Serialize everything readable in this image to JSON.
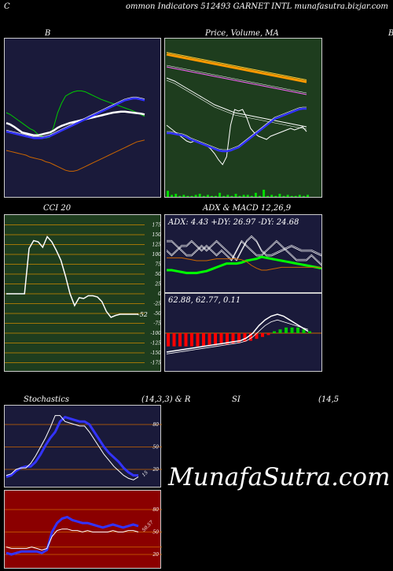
{
  "header": {
    "left": "C",
    "title": "ommon  Indicators 512493 GARNET INTL  munafasutra.bizjar.com"
  },
  "watermark": "MunafaSutra.com",
  "panels": {
    "bollinger": {
      "title": "B"
    },
    "price": {
      "title": "Price,  Volume,  MA",
      "right_edge": "B"
    },
    "cci": {
      "title": "CCI 20",
      "last_label": "-52"
    },
    "adx": {
      "title": "ADX  & MACD 12,26,9",
      "readout": "ADX: 4.43 +DY: 26.97 -DY: 24.68"
    },
    "macd": {
      "readout": "62.88,  62.77,  0.11"
    },
    "stoch": {
      "title_left": "Stochastics",
      "title_mid": "(14,3,3) & R",
      "title_si": "SI",
      "title_right": "(14,5",
      "last_label": "15",
      "ticks": [
        "80",
        "50",
        "20"
      ]
    },
    "rsi": {
      "last_label": "50.57",
      "ticks": [
        "80",
        "50",
        "30",
        "20"
      ]
    }
  },
  "colors": {
    "navy": "#1a1a3a",
    "green": "#1e3d1e",
    "darkred": "#8b0000",
    "orange": "#cc6600"
  },
  "chart_data": [
    {
      "type": "line",
      "name": "bollinger",
      "x": [
        0,
        1,
        2,
        3,
        4,
        5,
        6,
        7,
        8,
        9,
        10,
        11,
        12,
        13,
        14,
        15,
        16,
        17,
        18,
        19,
        20,
        21,
        22,
        23,
        24,
        25,
        26,
        27,
        28,
        29,
        30,
        31,
        32,
        33,
        34,
        35
      ],
      "series": [
        {
          "color": "#00cc00",
          "values": [
            60,
            56,
            50,
            44,
            38,
            32,
            26,
            22,
            14,
            10,
            6,
            8,
            30,
            60,
            80,
            95,
            100,
            104,
            106,
            106,
            104,
            100,
            96,
            92,
            88,
            85,
            82,
            79,
            76,
            73,
            70,
            67,
            64,
            60,
            56,
            52
          ]
        },
        {
          "color": "#ffffff",
          "values": [
            38,
            35,
            30,
            24,
            18,
            16,
            14,
            12,
            12,
            14,
            16,
            18,
            22,
            28,
            32,
            35,
            38,
            40,
            42,
            44,
            46,
            48,
            50,
            52,
            54,
            56,
            58,
            60,
            61,
            62,
            62,
            61,
            60,
            59,
            58,
            56
          ]
        },
        {
          "color": "#3333ff",
          "values": [
            20,
            18,
            16,
            14,
            12,
            10,
            8,
            6,
            6,
            6,
            8,
            10,
            14,
            18,
            22,
            26,
            30,
            34,
            38,
            42,
            46,
            50,
            54,
            58,
            62,
            66,
            70,
            74,
            78,
            82,
            86,
            88,
            90,
            90,
            88,
            86
          ]
        },
        {
          "color": "#cc6600",
          "values": [
            -20,
            -22,
            -24,
            -26,
            -28,
            -30,
            -34,
            -36,
            -38,
            -40,
            -44,
            -46,
            -50,
            -54,
            -58,
            -62,
            -64,
            -64,
            -62,
            -58,
            -54,
            -50,
            -46,
            -42,
            -38,
            -34,
            -30,
            -26,
            -22,
            -18,
            -14,
            -10,
            -6,
            -2,
            0,
            2
          ]
        }
      ]
    },
    {
      "type": "line",
      "name": "price_volume_ma",
      "x": [
        0,
        1,
        2,
        3,
        4,
        5,
        6,
        7,
        8,
        9,
        10,
        11,
        12,
        13,
        14,
        15,
        16,
        17,
        18,
        19,
        20,
        21,
        22,
        23,
        24,
        25,
        26,
        27,
        28,
        29,
        30,
        31,
        32,
        33,
        34,
        35
      ],
      "series": [
        {
          "color": "#ff9900",
          "values": [
            100,
            99,
            98,
            97,
            96,
            95,
            94,
            93,
            92,
            91,
            90,
            89,
            88,
            87,
            86,
            85,
            84,
            83,
            82,
            81,
            80,
            79,
            78,
            77,
            76,
            75,
            74,
            73,
            72,
            71,
            70,
            69,
            68,
            67,
            66,
            65
          ]
        },
        {
          "color": "#ff66ff",
          "values": [
            84,
            83,
            82,
            81,
            80,
            79,
            78,
            77,
            76,
            75,
            74,
            73,
            72,
            71,
            70,
            69,
            68,
            67,
            66,
            65,
            64,
            63,
            62,
            61,
            60,
            59,
            58,
            57,
            56,
            55,
            54,
            53,
            52,
            51,
            50,
            49
          ]
        },
        {
          "color": "#ffffff",
          "values": [
            70,
            68,
            66,
            63,
            60,
            57,
            54,
            51,
            48,
            45,
            42,
            39,
            36,
            34,
            32,
            30,
            28,
            26,
            25,
            24,
            23,
            22,
            21,
            20,
            19,
            18,
            17,
            16,
            15,
            14,
            13,
            12,
            11,
            10,
            9,
            8
          ]
        },
        {
          "color": "#ffffff",
          "values": [
            10,
            6,
            2,
            -2,
            -6,
            -10,
            -12,
            -10,
            -12,
            -14,
            -16,
            -20,
            -26,
            -34,
            -40,
            -30,
            10,
            30,
            28,
            30,
            20,
            6,
            0,
            -4,
            -6,
            -8,
            -4,
            -2,
            0,
            2,
            4,
            6,
            4,
            6,
            8,
            2
          ]
        },
        {
          "color": "#3333ff",
          "values": [
            0,
            0,
            -1,
            -2,
            -3,
            -5,
            -8,
            -10,
            -12,
            -14,
            -16,
            -18,
            -20,
            -22,
            -23,
            -23,
            -22,
            -20,
            -18,
            -14,
            -10,
            -6,
            -2,
            2,
            6,
            10,
            14,
            18,
            20,
            22,
            24,
            26,
            28,
            30,
            31,
            31
          ]
        }
      ],
      "volume": [
        6,
        2,
        3,
        1,
        2,
        1,
        1,
        2,
        3,
        1,
        2,
        1,
        1,
        4,
        1,
        2,
        1,
        3,
        1,
        2,
        2,
        1,
        4,
        1,
        7,
        1,
        2,
        1,
        3,
        1,
        2,
        1,
        1,
        2,
        1,
        2
      ]
    },
    {
      "type": "line",
      "name": "cci",
      "y_ticks": [
        175,
        150,
        125,
        100,
        75,
        50,
        25,
        0,
        -25,
        -50,
        -75,
        -100,
        -125,
        -150,
        -175
      ],
      "ylim": [
        -175,
        175
      ],
      "x": [
        0,
        1,
        2,
        3,
        4,
        5,
        6,
        7,
        8,
        9,
        10,
        11,
        12,
        13,
        14,
        15,
        16,
        17,
        18,
        19,
        20,
        21,
        22,
        23,
        24,
        25,
        26,
        27,
        28,
        29
      ],
      "values": [
        0,
        0,
        0,
        0,
        0,
        115,
        135,
        132,
        118,
        145,
        132,
        110,
        85,
        45,
        0,
        -30,
        -10,
        -12,
        -5,
        -5,
        -8,
        -20,
        -45,
        -60,
        -55,
        -52,
        -52,
        -52,
        -52,
        -52
      ]
    },
    {
      "type": "line",
      "name": "adx",
      "series": [
        {
          "color": "#ffffff",
          "values": [
            60,
            60,
            50,
            40,
            30,
            30,
            40,
            50,
            40,
            50,
            60,
            50,
            40,
            30,
            20,
            40,
            60,
            70,
            60,
            40,
            30,
            30,
            35,
            40,
            45,
            50,
            45,
            40,
            40,
            40,
            35,
            30
          ]
        },
        {
          "color": "#ffffff",
          "values": [
            40,
            30,
            40,
            50,
            50,
            60,
            50,
            40,
            50,
            40,
            30,
            40,
            30,
            20,
            40,
            60,
            50,
            40,
            30,
            30,
            40,
            50,
            60,
            50,
            40,
            30,
            20,
            20,
            20,
            30,
            20,
            10
          ]
        },
        {
          "color": "#00ff00",
          "values": [
            0,
            0,
            -2,
            -4,
            -6,
            -6,
            -6,
            -4,
            -2,
            2,
            6,
            10,
            14,
            14,
            14,
            16,
            20,
            22,
            24,
            28,
            26,
            24,
            22,
            20,
            18,
            16,
            14,
            12,
            10,
            8,
            6,
            4
          ]
        },
        {
          "color": "#cc6600",
          "values": [
            26,
            26,
            26,
            26,
            24,
            22,
            20,
            20,
            20,
            22,
            24,
            24,
            24,
            24,
            24,
            22,
            18,
            10,
            4,
            0,
            0,
            2,
            4,
            6,
            6,
            6,
            6,
            6,
            6,
            6,
            6,
            6
          ]
        }
      ]
    },
    {
      "type": "line",
      "name": "macd",
      "series": [
        {
          "color": "#ffffff",
          "values": [
            -20,
            -19,
            -18,
            -17,
            -16,
            -15,
            -14,
            -13,
            -12,
            -11,
            -10,
            -9,
            -8,
            -5,
            0,
            8,
            14,
            18,
            20,
            18,
            14,
            10,
            6,
            2
          ]
        },
        {
          "color": "#ffffff",
          "values": [
            -22,
            -21,
            -20,
            -19,
            -18,
            -17,
            -16,
            -15,
            -14,
            -13,
            -12,
            -11,
            -10,
            -8,
            -4,
            2,
            8,
            12,
            14,
            12,
            10,
            8,
            6,
            4
          ]
        }
      ],
      "histogram": [
        -14,
        -14,
        -14,
        -14,
        -14,
        -14,
        -14,
        -13,
        -13,
        -12,
        -12,
        -11,
        -10,
        -9,
        -8,
        -6,
        -4,
        -2,
        2,
        4,
        6,
        6,
        6,
        4,
        2
      ]
    },
    {
      "type": "line",
      "name": "stochastics",
      "ylim": [
        0,
        100
      ],
      "series": [
        {
          "color": "#3333ff",
          "values": [
            10,
            12,
            18,
            22,
            24,
            24,
            30,
            40,
            52,
            62,
            70,
            84,
            90,
            88,
            86,
            84,
            84,
            80,
            70,
            60,
            50,
            42,
            36,
            30,
            22,
            16,
            12,
            12
          ]
        },
        {
          "color": "#ffffff",
          "values": [
            12,
            14,
            20,
            22,
            22,
            28,
            38,
            50,
            62,
            76,
            92,
            92,
            84,
            82,
            80,
            78,
            78,
            70,
            60,
            50,
            40,
            32,
            24,
            18,
            12,
            8,
            6,
            10
          ]
        }
      ]
    },
    {
      "type": "line",
      "name": "rsi",
      "ylim": [
        0,
        100
      ],
      "series": [
        {
          "color": "#3333ff",
          "values": [
            22,
            20,
            22,
            24,
            24,
            24,
            24,
            22,
            26,
            50,
            62,
            68,
            70,
            66,
            64,
            62,
            62,
            60,
            58,
            56,
            58,
            60,
            58,
            56,
            58,
            60,
            58
          ]
        },
        {
          "color": "#ffffff",
          "values": [
            30,
            28,
            28,
            28,
            28,
            30,
            28,
            26,
            28,
            44,
            52,
            54,
            54,
            52,
            52,
            50,
            52,
            50,
            50,
            50,
            50,
            52,
            50,
            50,
            52,
            52,
            50
          ]
        }
      ]
    }
  ]
}
